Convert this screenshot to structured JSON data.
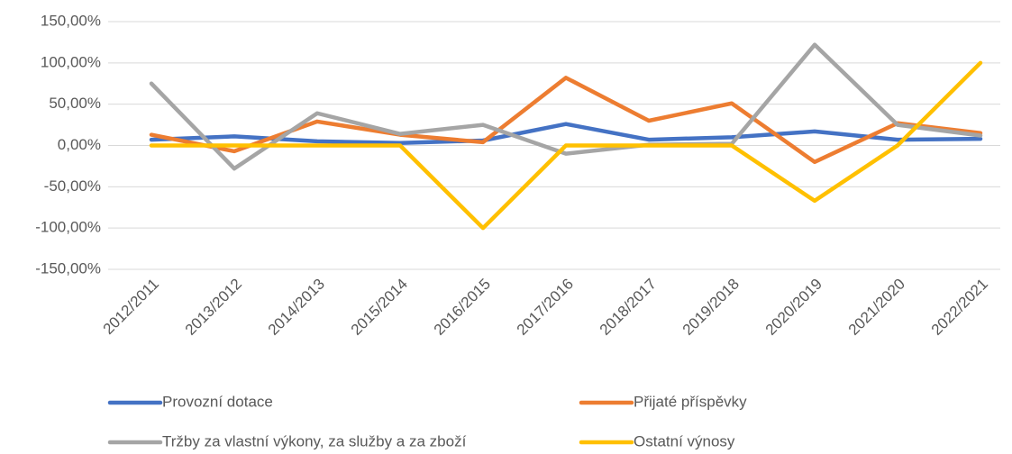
{
  "chart_data": {
    "type": "line",
    "categories": [
      "2012/2011",
      "2013/2012",
      "2014/2013",
      "2015/2014",
      "2016/2015",
      "2017/2016",
      "2018/2017",
      "2019/2018",
      "2020/2019",
      "2021/2020",
      "2022/2021"
    ],
    "series": [
      {
        "name": "Provozní dotace",
        "color": "#4472c4",
        "values": [
          7,
          11,
          5,
          3,
          6,
          26,
          7,
          10,
          17,
          7,
          8
        ]
      },
      {
        "name": "Přijaté příspěvky",
        "color": "#ed7d31",
        "values": [
          13,
          -7,
          29,
          13,
          4,
          82,
          30,
          51,
          -20,
          27,
          15
        ]
      },
      {
        "name": "Tržby za vlastní výkony, za služby a za zboží",
        "color": "#a5a5a5",
        "values": [
          75,
          -28,
          39,
          14,
          25,
          -10,
          1,
          2,
          122,
          25,
          12
        ]
      },
      {
        "name": "Ostatní výnosy",
        "color": "#ffc000",
        "values": [
          0,
          0,
          0,
          0,
          -100,
          0,
          0,
          0,
          -67,
          0,
          100
        ]
      }
    ],
    "ylim": [
      -150,
      150
    ],
    "yticks": [
      {
        "value": -150,
        "label": "-150,00%"
      },
      {
        "value": -100,
        "label": "-100,00%"
      },
      {
        "value": -50,
        "label": "-50,00%"
      },
      {
        "value": 0,
        "label": "0,00%"
      },
      {
        "value": 50,
        "label": "50,00%"
      },
      {
        "value": 100,
        "label": "100,00%"
      },
      {
        "value": 150,
        "label": "150,00%"
      }
    ],
    "grid": true
  }
}
